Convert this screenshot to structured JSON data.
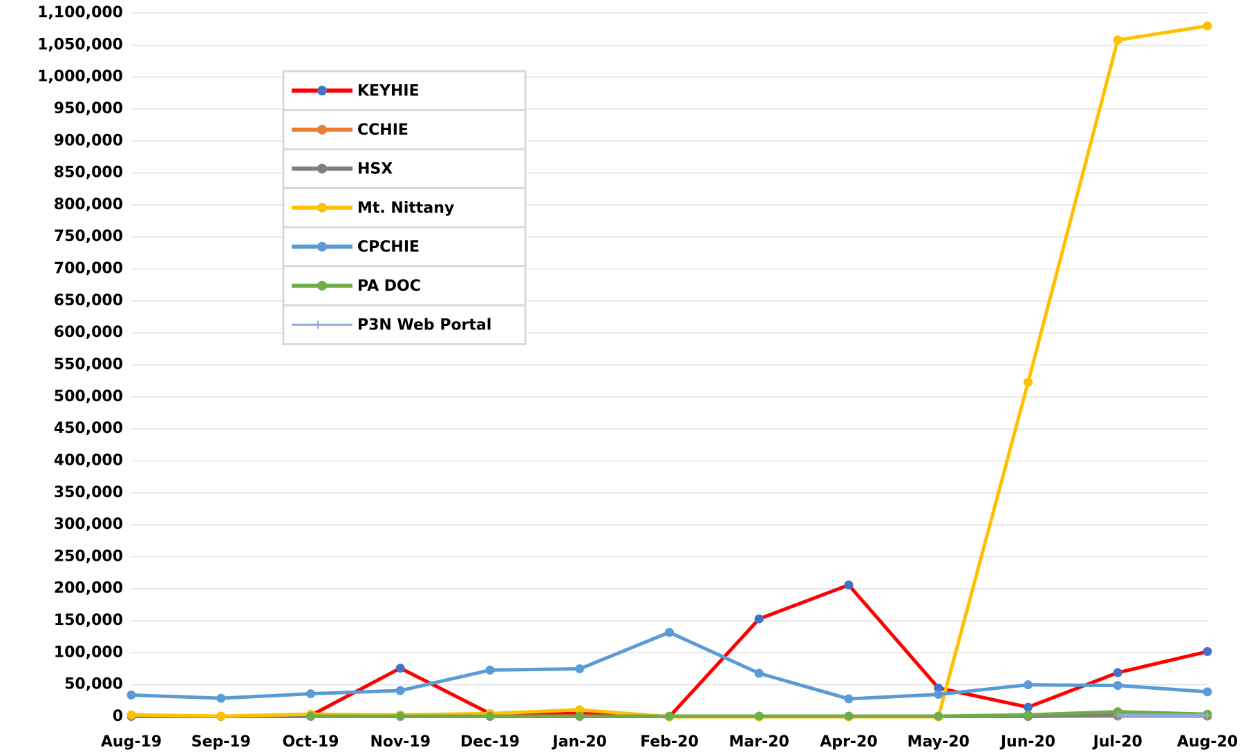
{
  "chart_data": {
    "type": "line",
    "categories": [
      "Aug-19",
      "Sep-19",
      "Oct-19",
      "Nov-19",
      "Dec-19",
      "Jan-20",
      "Feb-20",
      "Mar-20",
      "Apr-20",
      "May-20",
      "Jun-20",
      "Jul-20",
      "Aug-20"
    ],
    "series": [
      {
        "name": "KEYHIE",
        "color": "#ff0000",
        "marker_color": "#4472c4",
        "marker": "circle",
        "values": [
          null,
          null,
          2000,
          76000,
          5000,
          5000,
          0,
          153000,
          206000,
          45000,
          15000,
          69000,
          102000
        ]
      },
      {
        "name": "CCHIE",
        "color": "#ed7d31",
        "marker_color": "#ed7d31",
        "marker": "circle",
        "values": [
          2000,
          1000,
          1000,
          1000,
          1000,
          1000,
          1000,
          1000,
          1000,
          1000,
          1000,
          1000,
          1000
        ]
      },
      {
        "name": "HSX",
        "color": "#7f7f7f",
        "marker_color": "#7f7f7f",
        "marker": "circle",
        "values": [
          500,
          500,
          500,
          500,
          500,
          500,
          500,
          500,
          500,
          500,
          500,
          3000,
          2000
        ]
      },
      {
        "name": "Mt. Nittany",
        "color": "#ffc000",
        "marker_color": "#ffc000",
        "marker": "circle",
        "values": [
          3000,
          1000,
          4000,
          3000,
          5000,
          11000,
          0,
          0,
          0,
          0,
          523000,
          1058000,
          1080000
        ]
      },
      {
        "name": "CPCHIE",
        "color": "#5b9bd5",
        "marker_color": "#5b9bd5",
        "marker": "circle",
        "values": [
          34000,
          29000,
          36000,
          41000,
          73000,
          75000,
          132000,
          68000,
          28000,
          35000,
          50000,
          49000,
          39000
        ]
      },
      {
        "name": "PA DOC",
        "color": "#70ad47",
        "marker_color": "#70ad47",
        "marker": "circle",
        "values": [
          null,
          null,
          1000,
          1000,
          1000,
          1000,
          1000,
          1000,
          1000,
          1000,
          3000,
          8000,
          4000
        ]
      },
      {
        "name": "P3N Web Portal",
        "color": "#8faadc",
        "marker_color": "#8faadc",
        "marker": "plus",
        "values": [
          null,
          null,
          null,
          null,
          null,
          null,
          null,
          null,
          null,
          null,
          null,
          2000,
          2000
        ]
      }
    ],
    "ylim": [
      0,
      1100000
    ],
    "yticks": [
      0,
      {
        "value": 50000,
        "label": "50,000"
      },
      {
        "value": 100000,
        "label": "100,000"
      },
      {
        "value": 150000,
        "label": "150,000"
      },
      {
        "value": 200000,
        "label": "200,000"
      },
      {
        "value": 250000,
        "label": "250,000"
      },
      {
        "value": 300000,
        "label": "300,000"
      },
      {
        "value": 350000,
        "label": "350,000"
      },
      {
        "value": 400000,
        "label": "400,000"
      },
      {
        "value": 450000,
        "label": "450,000"
      },
      {
        "value": 500000,
        "label": "500,000"
      },
      {
        "value": 550000,
        "label": "550,000"
      },
      {
        "value": 600000,
        "label": "600,000"
      },
      {
        "value": 650000,
        "label": "650,000"
      },
      {
        "value": 700000,
        "label": "700,000"
      },
      {
        "value": 750000,
        "label": "750,000"
      },
      {
        "value": 800000,
        "label": "800,000"
      },
      {
        "value": 850000,
        "label": "850,000"
      },
      {
        "value": 900000,
        "label": "900,000"
      },
      {
        "value": 950000,
        "label": "950,000"
      },
      {
        "value": 1000000,
        "label": "1,000,000"
      },
      {
        "value": 1050000,
        "label": "1,050,000"
      },
      {
        "value": 1100000,
        "label": "1,100,000"
      }
    ],
    "grid": true,
    "legend": "upper-left"
  }
}
